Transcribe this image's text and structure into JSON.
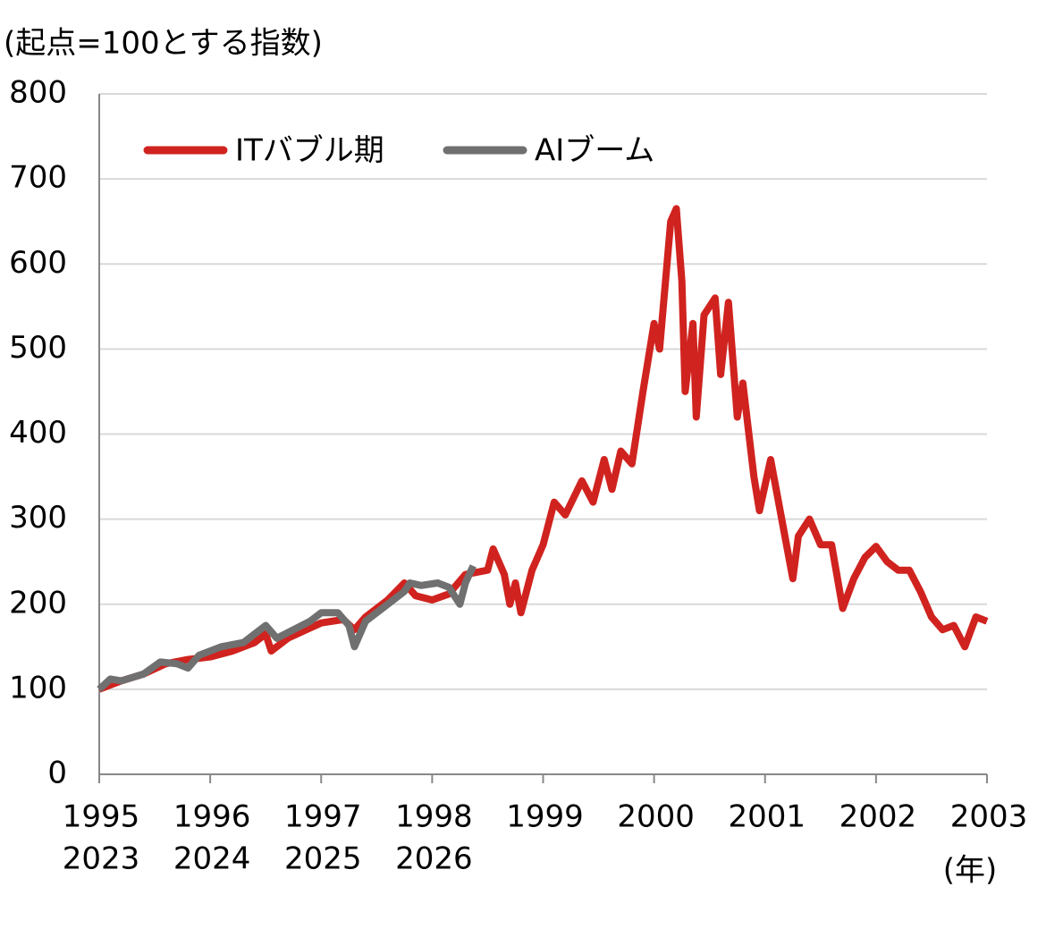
{
  "chart_data": {
    "type": "line",
    "y_axis_label": "(起点=100とする指数)",
    "x_unit_label": "(年)",
    "xlim": [
      1995,
      2003
    ],
    "xticks": [
      1995,
      1996,
      1997,
      1998,
      1999,
      2000,
      2001,
      2002,
      2003
    ],
    "x_secondary_labels": [
      "2023",
      "2024",
      "2025",
      "2026"
    ],
    "ylim": [
      0,
      800
    ],
    "yticks": [
      0,
      100,
      200,
      300,
      400,
      500,
      600,
      700,
      800
    ],
    "grid": true,
    "legend": "top-left",
    "series": [
      {
        "name": "ITバブル期",
        "color": "#d0231f",
        "x": [
          1995.0,
          1995.2,
          1995.4,
          1995.6,
          1995.8,
          1996.0,
          1996.2,
          1996.4,
          1996.5,
          1996.55,
          1996.7,
          1996.9,
          1997.0,
          1997.2,
          1997.3,
          1997.4,
          1997.6,
          1997.75,
          1997.85,
          1998.0,
          1998.15,
          1998.3,
          1998.5,
          1998.55,
          1998.65,
          1998.7,
          1998.75,
          1998.8,
          1998.9,
          1999.0,
          1999.1,
          1999.2,
          1999.35,
          1999.45,
          1999.55,
          1999.62,
          1999.7,
          1999.8,
          1999.9,
          2000.0,
          2000.05,
          2000.15,
          2000.2,
          2000.25,
          2000.28,
          2000.35,
          2000.38,
          2000.45,
          2000.55,
          2000.6,
          2000.67,
          2000.75,
          2000.8,
          2000.9,
          2000.95,
          2001.05,
          2001.15,
          2001.25,
          2001.3,
          2001.4,
          2001.5,
          2001.6,
          2001.7,
          2001.8,
          2001.9,
          2002.0,
          2002.1,
          2002.2,
          2002.3,
          2002.4,
          2002.5,
          2002.6,
          2002.7,
          2002.8,
          2002.9,
          2003.0
        ],
        "values": [
          100,
          110,
          118,
          130,
          135,
          138,
          145,
          155,
          165,
          145,
          160,
          172,
          178,
          182,
          170,
          185,
          205,
          225,
          210,
          205,
          212,
          235,
          240,
          265,
          235,
          200,
          225,
          190,
          240,
          270,
          320,
          305,
          345,
          320,
          370,
          335,
          380,
          365,
          450,
          530,
          500,
          650,
          665,
          580,
          450,
          530,
          420,
          540,
          560,
          470,
          555,
          420,
          460,
          350,
          310,
          370,
          300,
          230,
          280,
          300,
          270,
          270,
          195,
          230,
          255,
          268,
          250,
          240,
          240,
          215,
          185,
          170,
          175,
          150,
          185,
          180
        ]
      },
      {
        "name": "AIブーム",
        "color": "#707070",
        "x": [
          1995.0,
          1995.1,
          1995.2,
          1995.4,
          1995.55,
          1995.7,
          1995.8,
          1995.9,
          1996.1,
          1996.3,
          1996.45,
          1996.5,
          1996.6,
          1996.75,
          1996.9,
          1997.0,
          1997.15,
          1997.25,
          1997.3,
          1997.4,
          1997.6,
          1997.75,
          1997.8,
          1997.9,
          1998.05,
          1998.15,
          1998.25,
          1998.3,
          1998.37
        ],
        "values": [
          100,
          112,
          110,
          118,
          132,
          130,
          125,
          140,
          150,
          155,
          170,
          175,
          160,
          170,
          180,
          190,
          190,
          175,
          150,
          180,
          200,
          215,
          225,
          222,
          225,
          220,
          200,
          225,
          245
        ]
      }
    ]
  }
}
